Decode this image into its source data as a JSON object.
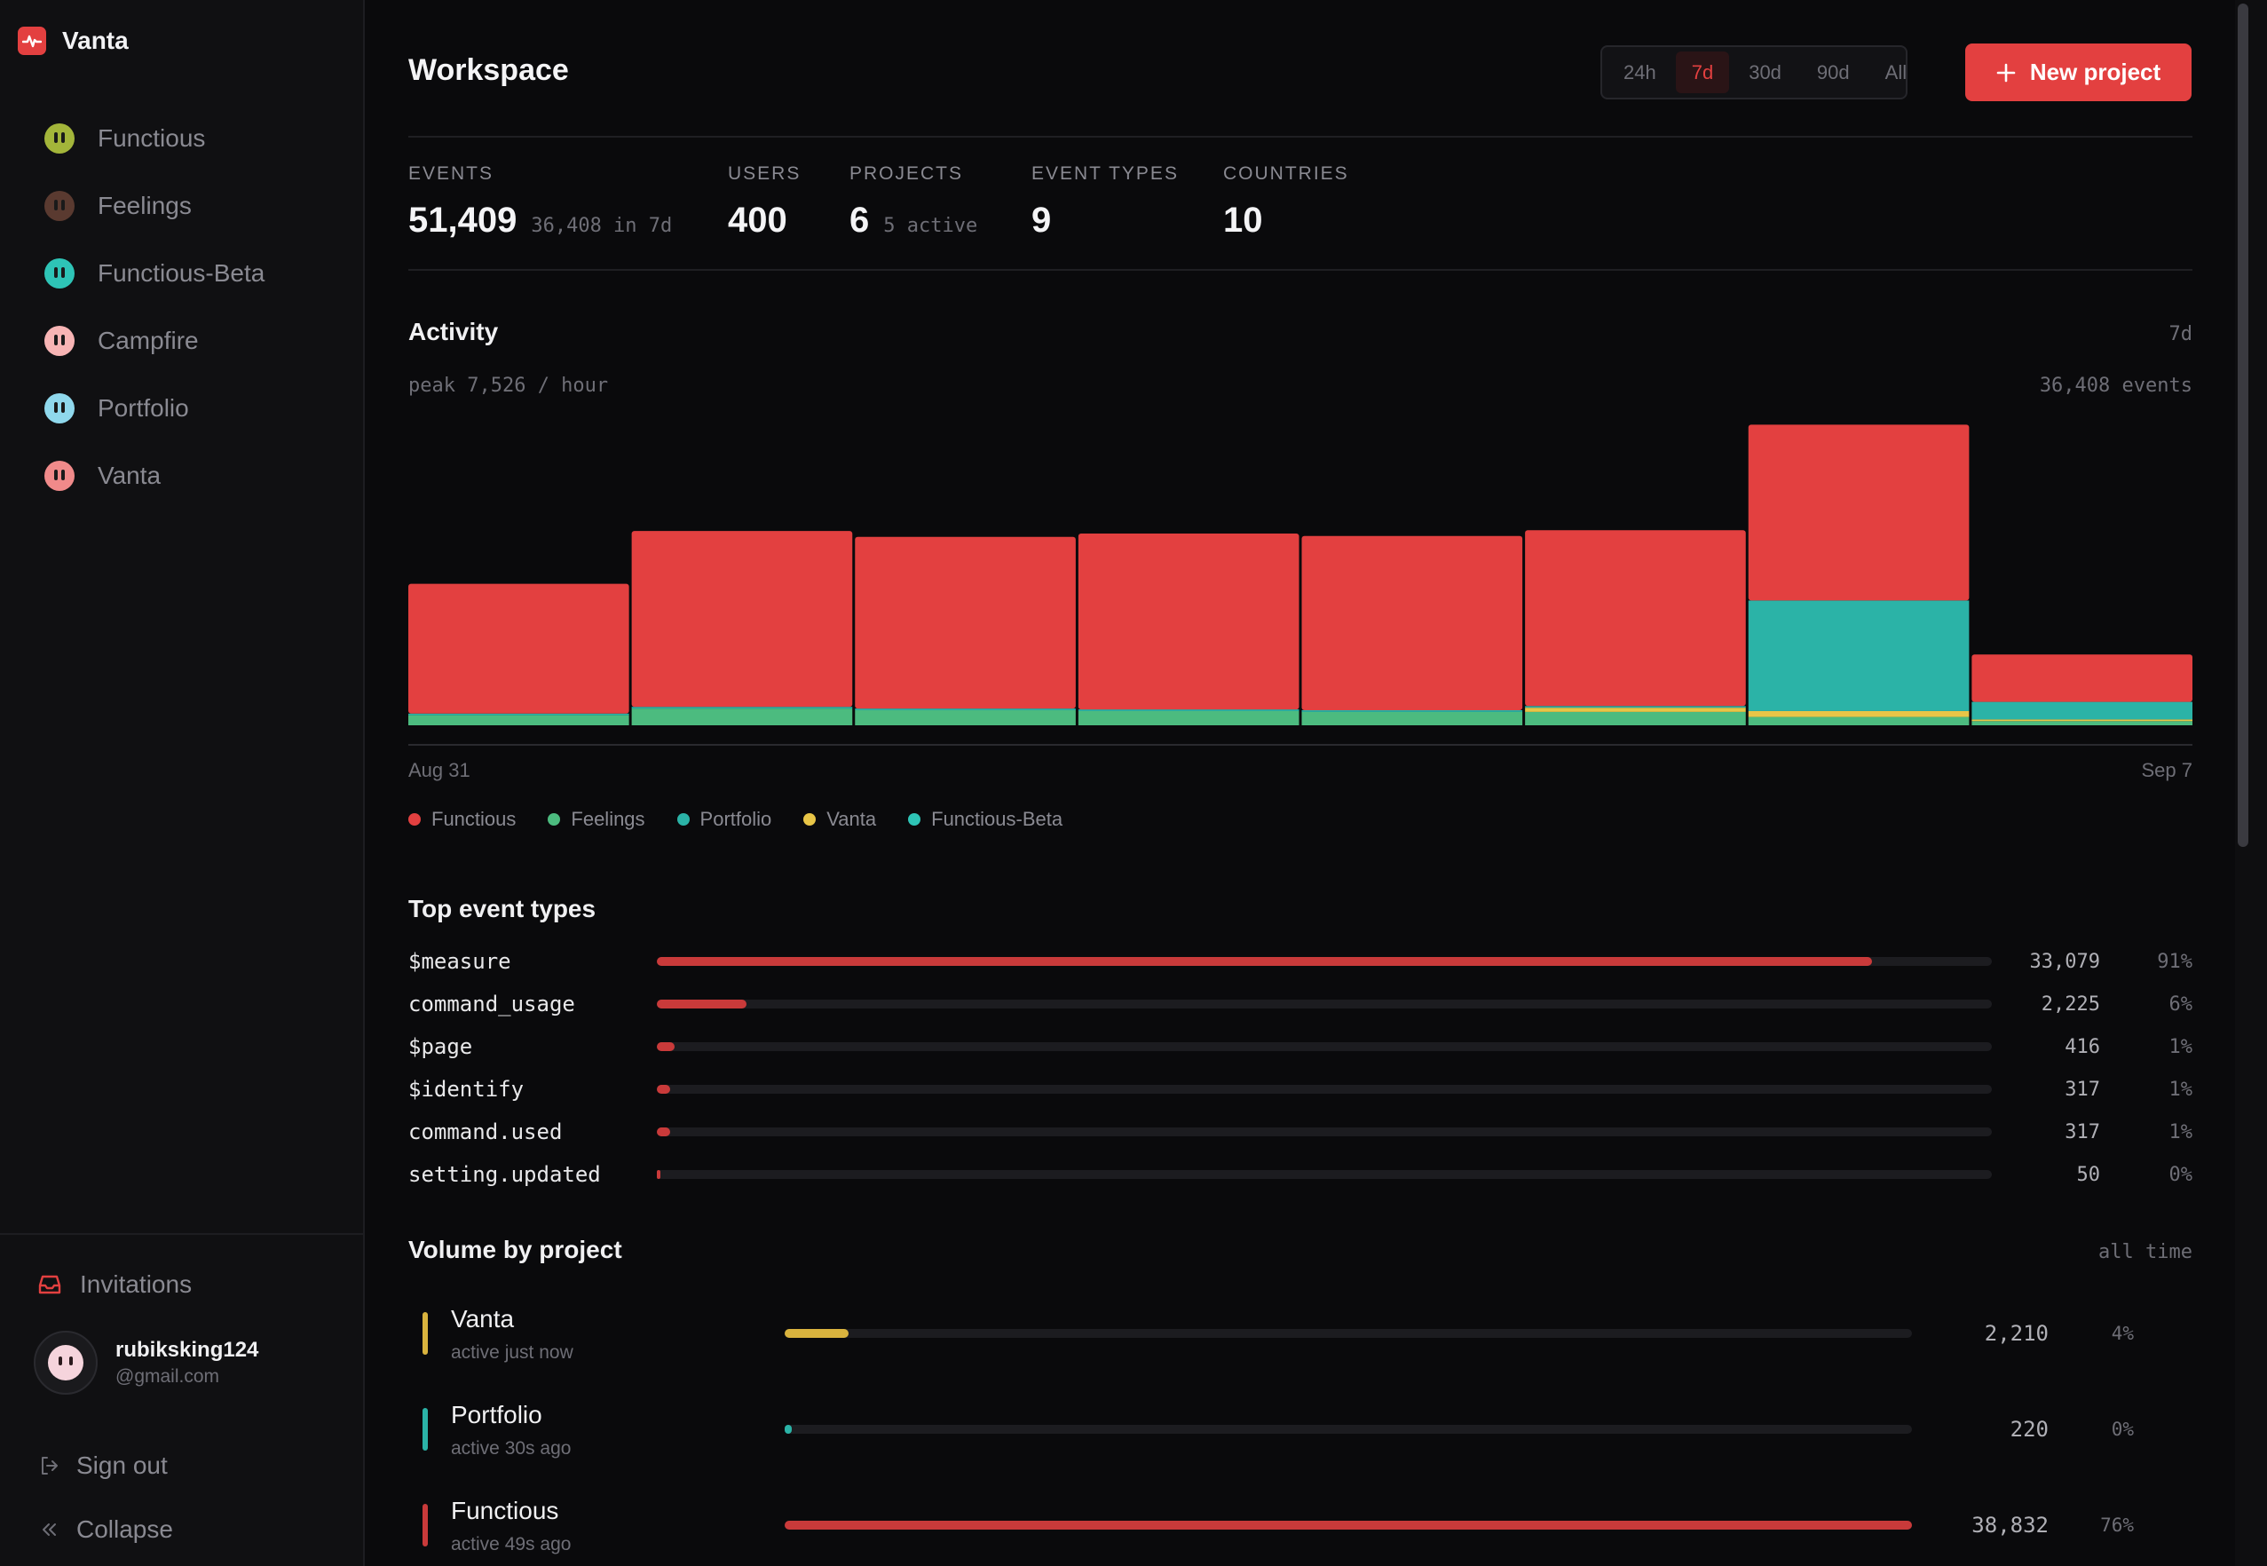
{
  "brand": {
    "name": "Vanta",
    "icon": "pulse-icon"
  },
  "sidebar": {
    "projects": [
      {
        "label": "Functious",
        "color": "#a3b53a"
      },
      {
        "label": "Feelings",
        "color": "#5a3a30"
      },
      {
        "label": "Functious-Beta",
        "color": "#2ec4b6"
      },
      {
        "label": "Campfire",
        "color": "#f7b4b4"
      },
      {
        "label": "Portfolio",
        "color": "#8fd8ec"
      },
      {
        "label": "Vanta",
        "color": "#f08a8a"
      }
    ],
    "invitations_label": "Invitations",
    "user": {
      "name": "rubiksking124",
      "email": "@gmail.com"
    },
    "sign_out_label": "Sign out",
    "collapse_label": "Collapse"
  },
  "header": {
    "title": "Workspace",
    "ranges": [
      "24h",
      "7d",
      "30d",
      "90d",
      "All"
    ],
    "active_range": "7d",
    "new_project_label": "New project"
  },
  "stats": [
    {
      "label": "EVENTS",
      "value": "51,409",
      "sub": "36,408 in 7d"
    },
    {
      "label": "USERS",
      "value": "400",
      "sub": ""
    },
    {
      "label": "PROJECTS",
      "value": "6",
      "sub": "5 active"
    },
    {
      "label": "EVENT TYPES",
      "value": "9",
      "sub": ""
    },
    {
      "label": "COUNTRIES",
      "value": "10",
      "sub": ""
    }
  ],
  "activity": {
    "title": "Activity",
    "range": "7d",
    "peak": "peak 7,526 / hour",
    "total": "36,408 events",
    "start_label": "Aug 31",
    "end_label": "Sep 7"
  },
  "chart_data": {
    "type": "bar",
    "stacked": true,
    "categories": [
      "1",
      "2",
      "3",
      "4",
      "5",
      "6",
      "7",
      "8"
    ],
    "series": [
      {
        "name": "Feelings",
        "color": "#4cbb7f",
        "values": [
          240,
          400,
          360,
          340,
          320,
          320,
          200,
          100
        ]
      },
      {
        "name": "Vanta",
        "color": "#e8c547",
        "values": [
          0,
          0,
          0,
          0,
          0,
          100,
          140,
          40
        ]
      },
      {
        "name": "Portfolio",
        "color": "#2bb3a7",
        "values": [
          40,
          40,
          40,
          40,
          40,
          40,
          2640,
          420
        ]
      },
      {
        "name": "Functious",
        "color": "#e34040",
        "values": [
          3100,
          4200,
          4100,
          4200,
          4160,
          4200,
          4200,
          1130
        ]
      },
      {
        "name": "Functious-Beta",
        "color": "#2ec4b6",
        "values": [
          0,
          0,
          0,
          0,
          0,
          0,
          0,
          0
        ]
      }
    ],
    "ylim": [
      0,
      7526
    ]
  },
  "legend": [
    {
      "label": "Functious",
      "color": "#e34040"
    },
    {
      "label": "Feelings",
      "color": "#4cbb7f"
    },
    {
      "label": "Portfolio",
      "color": "#2bb3a7"
    },
    {
      "label": "Vanta",
      "color": "#e8c547"
    },
    {
      "label": "Functious-Beta",
      "color": "#2ec4b6"
    }
  ],
  "top_events": {
    "title": "Top event types",
    "rows": [
      {
        "name": "$measure",
        "count": "33,079",
        "pct": "91%",
        "fraction": 0.91
      },
      {
        "name": "command_usage",
        "count": "2,225",
        "pct": "6%",
        "fraction": 0.067
      },
      {
        "name": "$page",
        "count": "416",
        "pct": "1%",
        "fraction": 0.013
      },
      {
        "name": "$identify",
        "count": "317",
        "pct": "1%",
        "fraction": 0.01
      },
      {
        "name": "command.used",
        "count": "317",
        "pct": "1%",
        "fraction": 0.01
      },
      {
        "name": "setting.updated",
        "count": "50",
        "pct": "0%",
        "fraction": 0.002
      }
    ]
  },
  "volume": {
    "title": "Volume by project",
    "range": "all time",
    "rows": [
      {
        "name": "Vanta",
        "sub": "active just now",
        "count": "2,210",
        "pct": "4%",
        "fraction": 0.057,
        "color": "#d9b33e"
      },
      {
        "name": "Portfolio",
        "sub": "active 30s ago",
        "count": "220",
        "pct": "0%",
        "fraction": 0.006,
        "color": "#2bb3a7"
      },
      {
        "name": "Functious",
        "sub": "active 49s ago",
        "count": "38,832",
        "pct": "76%",
        "fraction": 1.0,
        "color": "#c93a3a"
      }
    ]
  }
}
